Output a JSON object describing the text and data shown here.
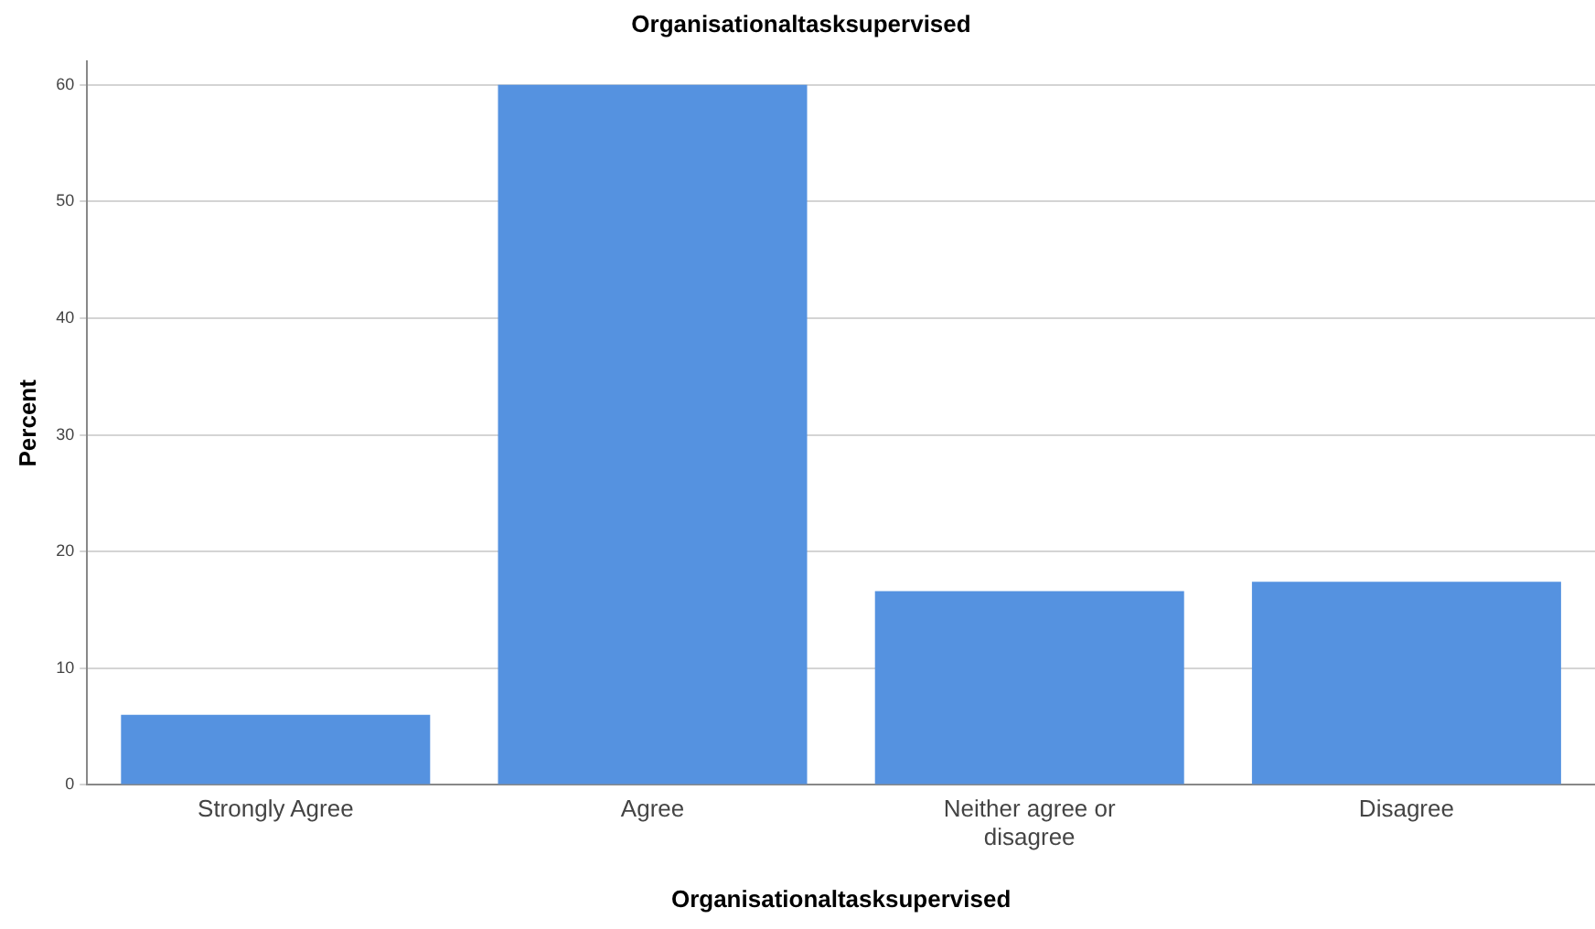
{
  "chart_data": {
    "type": "bar",
    "title": "Organisationaltasksupervised",
    "xlabel": "Organisationaltasksupervised",
    "ylabel": "Percent",
    "categories": [
      "Strongly Agree",
      "Agree",
      "Neither agree or disagree",
      "Disagree"
    ],
    "values": [
      6.0,
      60.0,
      16.6,
      17.4
    ],
    "color": "#5592e0",
    "ylim": [
      0,
      62
    ],
    "yticks": [
      0,
      10,
      20,
      30,
      40,
      50,
      60
    ],
    "grid": "y"
  }
}
